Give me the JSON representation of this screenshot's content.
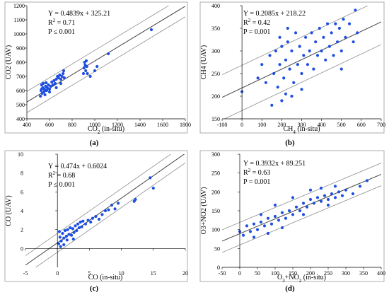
{
  "figure": {
    "panel_labels": [
      "(a)",
      "(b)",
      "(c)",
      "(d)"
    ]
  },
  "colors": {
    "points": "#1f4fe0",
    "fit_line": "#444444",
    "band_line": "#8c8c8c",
    "frame": "#888888"
  },
  "chart_data": [
    {
      "type": "scatter",
      "xlabel_main": "CO",
      "xlabel_sub": "2",
      "xlabel_rest": " (in-situ)",
      "ylabel": "CO2 (UAV)",
      "xlim": [
        400,
        1800
      ],
      "ylim": [
        400,
        1200
      ],
      "xticks": [
        "400",
        "600",
        "800",
        "1000",
        "1200",
        "1400",
        "1600",
        "1800"
      ],
      "yticks": [
        "400",
        "500",
        "600",
        "700",
        "800",
        "900",
        "1000",
        "1100",
        "1200"
      ],
      "grid": false,
      "annotation": {
        "equation": "Y = 0.4839x + 325.21",
        "r2_label": "R",
        "r2_sup": "2",
        "r2_value": " = 0.71",
        "p_text": "P ≤ 0.001"
      },
      "fit": {
        "slope": 0.4839,
        "intercept": 325.21
      },
      "band_offset": 75,
      "points": [
        [
          520,
          560
        ],
        [
          525,
          600
        ],
        [
          530,
          640
        ],
        [
          535,
          580
        ],
        [
          540,
          620
        ],
        [
          545,
          650
        ],
        [
          550,
          590
        ],
        [
          555,
          610
        ],
        [
          560,
          570
        ],
        [
          565,
          630
        ],
        [
          570,
          655
        ],
        [
          575,
          600
        ],
        [
          580,
          620
        ],
        [
          590,
          640
        ],
        [
          600,
          610
        ],
        [
          610,
          630
        ],
        [
          620,
          660
        ],
        [
          630,
          640
        ],
        [
          640,
          670
        ],
        [
          650,
          650
        ],
        [
          660,
          680
        ],
        [
          670,
          700
        ],
        [
          680,
          690
        ],
        [
          690,
          710
        ],
        [
          700,
          680
        ],
        [
          710,
          700
        ],
        [
          720,
          720
        ],
        [
          725,
          740
        ],
        [
          730,
          690
        ],
        [
          700,
          650
        ],
        [
          660,
          620
        ],
        [
          600,
          590
        ],
        [
          560,
          600
        ],
        [
          530,
          610
        ],
        [
          900,
          720
        ],
        [
          905,
          760
        ],
        [
          910,
          800
        ],
        [
          915,
          780
        ],
        [
          920,
          740
        ],
        [
          925,
          810
        ],
        [
          930,
          770
        ],
        [
          935,
          720
        ],
        [
          960,
          700
        ],
        [
          1000,
          740
        ],
        [
          1020,
          770
        ],
        [
          1120,
          860
        ],
        [
          1500,
          1030
        ]
      ]
    },
    {
      "type": "scatter",
      "xlabel_main": "CH",
      "xlabel_sub": "4",
      "xlabel_rest": " (in-situ)",
      "ylabel": "CH4 (UAV)",
      "xlim": [
        -100,
        700
      ],
      "ylim": [
        150,
        400
      ],
      "xticks": [
        "-100",
        "0",
        "100",
        "200",
        "300",
        "400",
        "500",
        "600",
        "700"
      ],
      "yticks": [
        "150",
        "200",
        "250",
        "300",
        "350",
        "400"
      ],
      "grid": false,
      "annotation": {
        "equation": "Y = 0.2085x + 218.22",
        "r2_label": "R",
        "r2_sup": "2",
        "r2_value": " = 0.42",
        "p_text": "P = 0.001"
      },
      "fit": {
        "slope": 0.2085,
        "intercept": 218.22
      },
      "band_offset": 50,
      "points": [
        [
          0,
          210
        ],
        [
          80,
          240
        ],
        [
          100,
          270
        ],
        [
          120,
          230
        ],
        [
          140,
          290
        ],
        [
          160,
          250
        ],
        [
          170,
          300
        ],
        [
          180,
          220
        ],
        [
          190,
          270
        ],
        [
          200,
          310
        ],
        [
          210,
          240
        ],
        [
          220,
          280
        ],
        [
          230,
          320
        ],
        [
          240,
          260
        ],
        [
          250,
          300
        ],
        [
          260,
          230
        ],
        [
          270,
          340
        ],
        [
          280,
          270
        ],
        [
          290,
          310
        ],
        [
          300,
          250
        ],
        [
          310,
          290
        ],
        [
          320,
          330
        ],
        [
          330,
          270
        ],
        [
          340,
          300
        ],
        [
          350,
          340
        ],
        [
          360,
          260
        ],
        [
          370,
          320
        ],
        [
          380,
          290
        ],
        [
          390,
          350
        ],
        [
          400,
          300
        ],
        [
          410,
          330
        ],
        [
          420,
          280
        ],
        [
          430,
          360
        ],
        [
          440,
          310
        ],
        [
          450,
          340
        ],
        [
          460,
          290
        ],
        [
          470,
          360
        ],
        [
          480,
          320
        ],
        [
          490,
          350
        ],
        [
          500,
          300
        ],
        [
          510,
          370
        ],
        [
          520,
          330
        ],
        [
          540,
          360
        ],
        [
          560,
          320
        ],
        [
          570,
          390
        ],
        [
          580,
          340
        ],
        [
          200,
          190
        ],
        [
          220,
          205
        ],
        [
          250,
          200
        ],
        [
          300,
          215
        ],
        [
          190,
          330
        ],
        [
          230,
          350
        ],
        [
          150,
          180
        ],
        [
          500,
          260
        ]
      ]
    },
    {
      "type": "scatter",
      "xlabel_main": "CO",
      "xlabel_sub": "",
      "xlabel_rest": " (in-situ)",
      "ylabel": "CO (UAV)",
      "xlim": [
        -5,
        20
      ],
      "ylim": [
        -2,
        10
      ],
      "xticks": [
        "-5",
        "0",
        "5",
        "10",
        "15",
        "20"
      ],
      "yticks": [
        "0",
        "2",
        "4",
        "6",
        "8",
        "10"
      ],
      "grid": false,
      "annotation": {
        "equation": "Y = 0.474x + 0.6024",
        "r2_label": "R",
        "r2_sup": "2",
        "r2_value": " = 0.68",
        "p_text": "P ≤ 0.001"
      },
      "fit": {
        "slope": 0.474,
        "intercept": 0.6024
      },
      "band_offset": 1,
      "points": [
        [
          0.2,
          0.5
        ],
        [
          0.4,
          1.2
        ],
        [
          0.6,
          0.8
        ],
        [
          0.8,
          1.6
        ],
        [
          1.0,
          1.1
        ],
        [
          1.2,
          1.9
        ],
        [
          1.4,
          1.3
        ],
        [
          1.6,
          2.0
        ],
        [
          1.8,
          1.5
        ],
        [
          2.0,
          2.2
        ],
        [
          2.2,
          1.4
        ],
        [
          2.4,
          2.1
        ],
        [
          2.6,
          1.7
        ],
        [
          2.8,
          2.4
        ],
        [
          3.0,
          1.9
        ],
        [
          3.2,
          2.6
        ],
        [
          3.4,
          2.2
        ],
        [
          3.6,
          2.8
        ],
        [
          3.8,
          2.3
        ],
        [
          4.0,
          2.9
        ],
        [
          4.4,
          2.6
        ],
        [
          4.8,
          3.0
        ],
        [
          5.2,
          2.8
        ],
        [
          5.5,
          3.2
        ],
        [
          6.0,
          3.4
        ],
        [
          6.5,
          3.1
        ],
        [
          7.0,
          3.6
        ],
        [
          7.5,
          4.0
        ],
        [
          8.0,
          4.1
        ],
        [
          8.5,
          4.6
        ],
        [
          9.0,
          4.2
        ],
        [
          9.5,
          4.8
        ],
        [
          12.0,
          5.0
        ],
        [
          12.2,
          5.2
        ],
        [
          14.5,
          7.5
        ],
        [
          15.0,
          6.4
        ],
        [
          0.5,
          0.2
        ],
        [
          1.0,
          0.4
        ],
        [
          0.3,
          1.8
        ],
        [
          1.5,
          0.9
        ],
        [
          2.5,
          1.0
        ]
      ]
    },
    {
      "type": "scatter",
      "xlabel_main": "O",
      "xlabel_sub": "3",
      "xlabel_rest": "+NO",
      "xlabel_sub2": "2",
      "xlabel_tail": " (in-situ)",
      "ylabel": "O3+NO2 (UAV)",
      "xlim": [
        -50,
        400
      ],
      "ylim": [
        0,
        300
      ],
      "xticks": [
        "-50",
        "0",
        "50",
        "100",
        "150",
        "200",
        "250",
        "300",
        "350",
        "400"
      ],
      "yticks": [
        "0",
        "50",
        "100",
        "150",
        "200",
        "250",
        "300"
      ],
      "grid": false,
      "annotation": {
        "equation": "Y = 0.3932x + 89.251",
        "r2_label": "R",
        "r2_sup": "2",
        "r2_value": " = 0.63",
        "p_text": "P = 0.001"
      },
      "fit": {
        "slope": 0.3932,
        "intercept": 89.251
      },
      "band_offset": 30,
      "points": [
        [
          0,
          95
        ],
        [
          10,
          85
        ],
        [
          20,
          110
        ],
        [
          30,
          95
        ],
        [
          40,
          115
        ],
        [
          50,
          100
        ],
        [
          60,
          120
        ],
        [
          70,
          110
        ],
        [
          80,
          130
        ],
        [
          90,
          115
        ],
        [
          100,
          135
        ],
        [
          110,
          125
        ],
        [
          120,
          145
        ],
        [
          130,
          130
        ],
        [
          140,
          150
        ],
        [
          150,
          140
        ],
        [
          160,
          160
        ],
        [
          170,
          150
        ],
        [
          180,
          170
        ],
        [
          190,
          160
        ],
        [
          200,
          180
        ],
        [
          210,
          170
        ],
        [
          220,
          185
        ],
        [
          230,
          175
        ],
        [
          240,
          190
        ],
        [
          250,
          180
        ],
        [
          260,
          195
        ],
        [
          270,
          185
        ],
        [
          280,
          200
        ],
        [
          290,
          190
        ],
        [
          300,
          205
        ],
        [
          320,
          195
        ],
        [
          340,
          215
        ],
        [
          360,
          230
        ],
        [
          100,
          165
        ],
        [
          150,
          185
        ],
        [
          200,
          205
        ],
        [
          80,
          90
        ],
        [
          120,
          105
        ],
        [
          180,
          140
        ],
        [
          250,
          165
        ],
        [
          60,
          140
        ],
        [
          40,
          80
        ],
        [
          230,
          210
        ],
        [
          270,
          215
        ]
      ]
    }
  ]
}
